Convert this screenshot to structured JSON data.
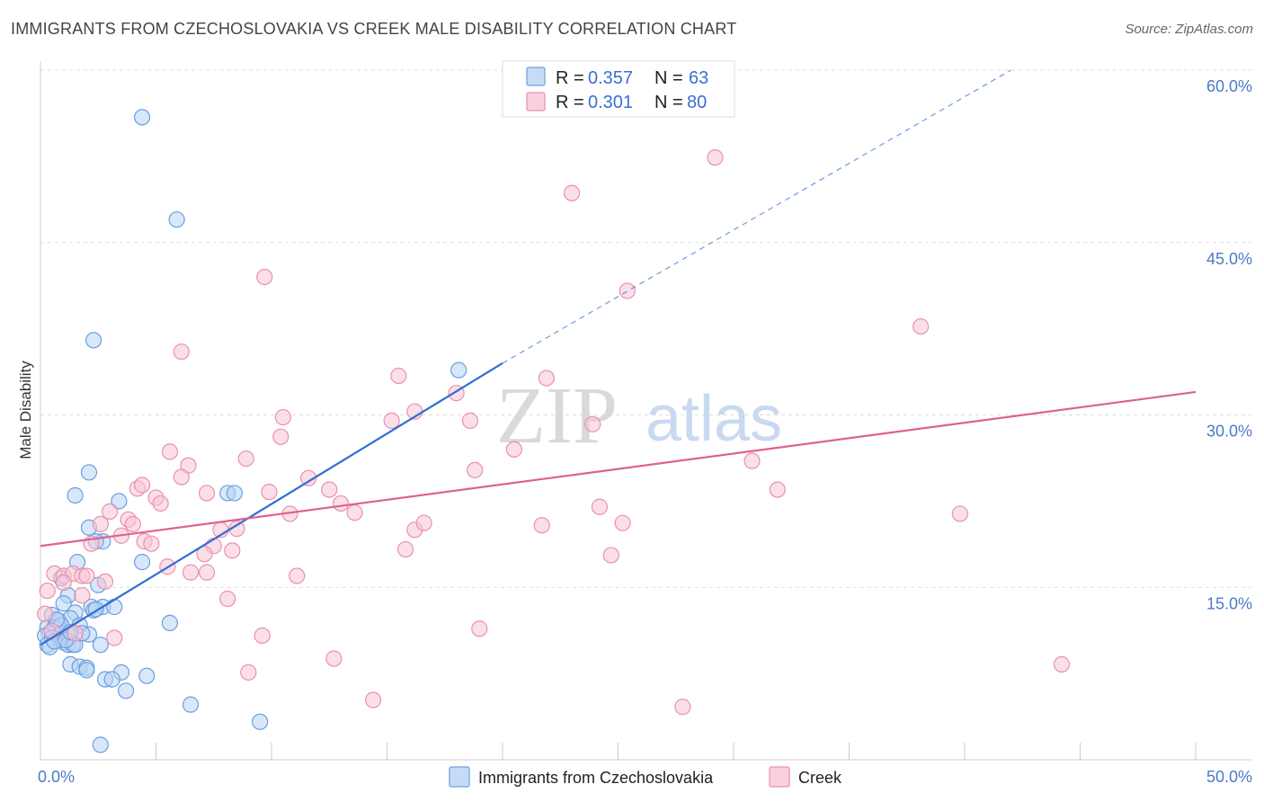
{
  "title": "IMMIGRANTS FROM CZECHOSLOVAKIA VS CREEK MALE DISABILITY CORRELATION CHART",
  "source": "Source: ZipAtlas.com",
  "watermark": {
    "zip": "ZIP",
    "atlas": "atlas"
  },
  "chart_data": {
    "type": "scatter",
    "ylabel": "Male Disability",
    "xlim": [
      0,
      50
    ],
    "ylim": [
      0,
      60
    ],
    "x_tick_labels": [
      {
        "value": 0,
        "label": "0.0%"
      },
      {
        "value": 50,
        "label": "50.0%"
      }
    ],
    "y_tick_labels": [
      {
        "value": 15,
        "label": "15.0%"
      },
      {
        "value": 30,
        "label": "30.0%"
      },
      {
        "value": 45,
        "label": "45.0%"
      },
      {
        "value": 60,
        "label": "60.0%"
      }
    ],
    "legend": {
      "rows": [
        {
          "r_label": "R = ",
          "r_value": "0.357",
          "n_label": "N = ",
          "n_value": "63"
        },
        {
          "r_label": "R = ",
          "r_value": "0.301",
          "n_label": "N = ",
          "n_value": "80"
        }
      ]
    },
    "series": [
      {
        "name": "Immigrants from Czechoslovakia",
        "color": "#6a9fe0",
        "fill": "#b8d3f4",
        "line_color": "#3070d0",
        "trend": {
          "x0": 0.0,
          "y0": 10.0,
          "x1": 20.0,
          "y1": 34.5,
          "dash_x1": 42.0,
          "dash_y1": 60.0
        },
        "points": [
          [
            4.4,
            55.9
          ],
          [
            5.9,
            47.0
          ],
          [
            2.3,
            36.5
          ],
          [
            18.1,
            33.9
          ],
          [
            2.1,
            25.0
          ],
          [
            1.5,
            23.0
          ],
          [
            3.4,
            22.5
          ],
          [
            8.1,
            23.2
          ],
          [
            8.4,
            23.2
          ],
          [
            2.1,
            20.2
          ],
          [
            2.7,
            19.0
          ],
          [
            2.4,
            19.0
          ],
          [
            1.6,
            17.2
          ],
          [
            4.4,
            17.2
          ],
          [
            0.9,
            15.8
          ],
          [
            2.5,
            15.2
          ],
          [
            1.2,
            14.3
          ],
          [
            1.0,
            13.6
          ],
          [
            2.7,
            13.3
          ],
          [
            3.2,
            13.3
          ],
          [
            2.2,
            13.3
          ],
          [
            2.3,
            13.0
          ],
          [
            1.5,
            12.8
          ],
          [
            0.5,
            12.6
          ],
          [
            0.8,
            12.1
          ],
          [
            1.3,
            12.3
          ],
          [
            1.7,
            11.7
          ],
          [
            0.3,
            11.5
          ],
          [
            0.6,
            11.5
          ],
          [
            5.6,
            11.9
          ],
          [
            0.4,
            11.0
          ],
          [
            0.9,
            11.0
          ],
          [
            1.2,
            10.9
          ],
          [
            2.1,
            10.9
          ],
          [
            0.2,
            10.8
          ],
          [
            0.5,
            10.6
          ],
          [
            0.8,
            10.4
          ],
          [
            1.0,
            10.2
          ],
          [
            0.3,
            10.0
          ],
          [
            1.2,
            10.0
          ],
          [
            1.4,
            10.0
          ],
          [
            1.5,
            10.0
          ],
          [
            0.4,
            9.8
          ],
          [
            2.6,
            10.0
          ],
          [
            1.3,
            8.3
          ],
          [
            1.7,
            8.1
          ],
          [
            2.0,
            8.0
          ],
          [
            2.0,
            7.8
          ],
          [
            3.5,
            7.6
          ],
          [
            4.6,
            7.3
          ],
          [
            2.8,
            7.0
          ],
          [
            3.1,
            7.0
          ],
          [
            3.7,
            6.0
          ],
          [
            6.5,
            4.8
          ],
          [
            9.5,
            3.3
          ],
          [
            2.6,
            1.3
          ],
          [
            0.6,
            10.3
          ],
          [
            0.9,
            11.7
          ],
          [
            1.8,
            11.0
          ],
          [
            1.1,
            10.4
          ],
          [
            0.7,
            12.2
          ],
          [
            2.4,
            13.1
          ],
          [
            1.3,
            11.1
          ]
        ]
      },
      {
        "name": "Creek",
        "color": "#eb8fb0",
        "fill": "#f7c5d6",
        "line_color": "#e06090",
        "trend": {
          "x0": 0.0,
          "y0": 18.6,
          "x1": 50.0,
          "y1": 32.0
        },
        "points": [
          [
            29.2,
            52.4
          ],
          [
            23.0,
            49.3
          ],
          [
            9.7,
            42.0
          ],
          [
            25.4,
            40.8
          ],
          [
            38.1,
            37.7
          ],
          [
            6.1,
            35.5
          ],
          [
            15.5,
            33.4
          ],
          [
            21.9,
            33.2
          ],
          [
            18.0,
            31.9
          ],
          [
            16.2,
            30.3
          ],
          [
            10.5,
            29.8
          ],
          [
            15.2,
            29.5
          ],
          [
            18.6,
            29.5
          ],
          [
            23.9,
            29.2
          ],
          [
            10.4,
            28.1
          ],
          [
            20.5,
            27.0
          ],
          [
            5.6,
            26.8
          ],
          [
            8.9,
            26.2
          ],
          [
            6.4,
            25.6
          ],
          [
            18.8,
            25.2
          ],
          [
            30.8,
            26.0
          ],
          [
            11.6,
            24.5
          ],
          [
            6.1,
            24.6
          ],
          [
            4.2,
            23.6
          ],
          [
            4.4,
            23.9
          ],
          [
            7.2,
            23.2
          ],
          [
            9.9,
            23.3
          ],
          [
            12.5,
            23.5
          ],
          [
            31.9,
            23.5
          ],
          [
            5.0,
            22.8
          ],
          [
            5.2,
            22.3
          ],
          [
            13.0,
            22.3
          ],
          [
            3.0,
            21.6
          ],
          [
            10.8,
            21.4
          ],
          [
            13.6,
            21.5
          ],
          [
            24.2,
            22.0
          ],
          [
            39.8,
            21.4
          ],
          [
            3.8,
            20.9
          ],
          [
            2.6,
            20.5
          ],
          [
            4.0,
            20.5
          ],
          [
            8.5,
            20.1
          ],
          [
            16.2,
            20.0
          ],
          [
            16.6,
            20.6
          ],
          [
            21.7,
            20.4
          ],
          [
            25.2,
            20.6
          ],
          [
            3.5,
            19.5
          ],
          [
            7.8,
            20.0
          ],
          [
            4.5,
            19.0
          ],
          [
            2.2,
            18.8
          ],
          [
            4.8,
            18.8
          ],
          [
            7.5,
            18.6
          ],
          [
            8.3,
            18.2
          ],
          [
            15.8,
            18.3
          ],
          [
            24.7,
            17.8
          ],
          [
            7.1,
            17.9
          ],
          [
            5.5,
            16.8
          ],
          [
            6.5,
            16.3
          ],
          [
            7.2,
            16.3
          ],
          [
            11.1,
            16.0
          ],
          [
            0.6,
            16.2
          ],
          [
            1.0,
            16.0
          ],
          [
            1.4,
            16.2
          ],
          [
            1.8,
            16.0
          ],
          [
            2.0,
            16.0
          ],
          [
            1.0,
            15.4
          ],
          [
            2.8,
            15.5
          ],
          [
            0.3,
            14.7
          ],
          [
            1.8,
            14.3
          ],
          [
            8.1,
            14.0
          ],
          [
            19.0,
            11.4
          ],
          [
            9.6,
            10.8
          ],
          [
            3.2,
            10.6
          ],
          [
            12.7,
            8.8
          ],
          [
            44.2,
            8.3
          ],
          [
            9.0,
            7.6
          ],
          [
            14.4,
            5.2
          ],
          [
            27.8,
            4.6
          ],
          [
            0.2,
            12.7
          ],
          [
            0.5,
            11.2
          ],
          [
            1.5,
            11.0
          ]
        ]
      }
    ]
  }
}
